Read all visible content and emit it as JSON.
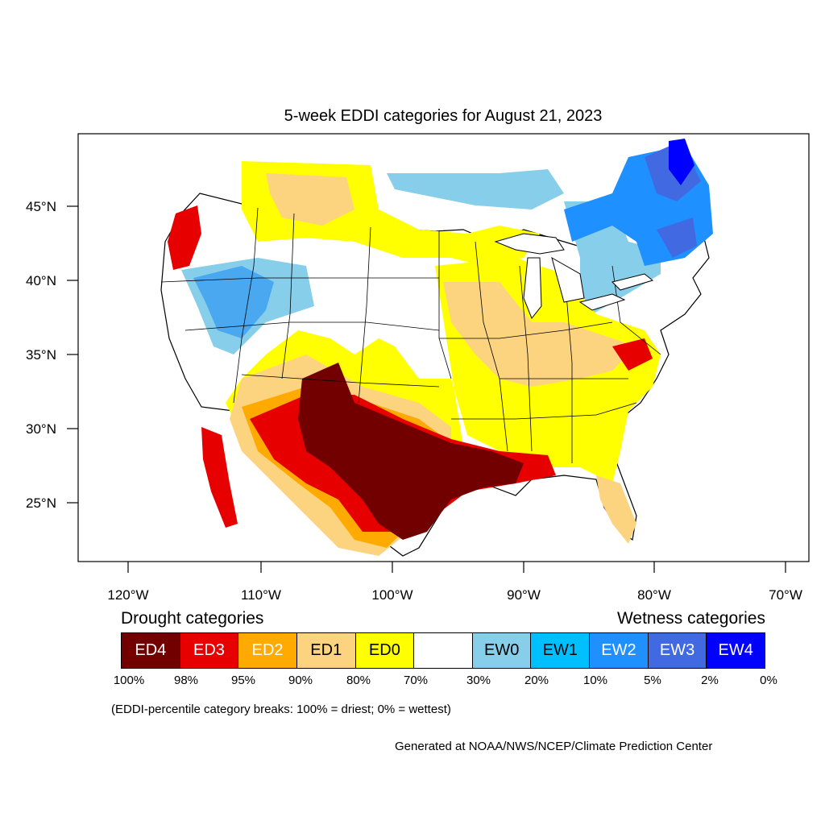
{
  "title": "5-week EDDI categories for August 21, 2023",
  "axes": {
    "lon_labels": [
      "120°W",
      "110°W",
      "100°W",
      "90°W",
      "80°W",
      "70°W"
    ],
    "lat_labels": [
      "45°N",
      "40°N",
      "35°N",
      "30°N",
      "25°N"
    ]
  },
  "legend": {
    "drought_heading": "Drought categories",
    "wetness_heading": "Wetness categories",
    "categories": [
      {
        "label": "ED4",
        "color": "#730000",
        "text_color": "#ffffff"
      },
      {
        "label": "ED3",
        "color": "#e60000",
        "text_color": "#ffffff"
      },
      {
        "label": "ED2",
        "color": "#ffaa00",
        "text_color": "#ffffff"
      },
      {
        "label": "ED1",
        "color": "#fcd37f",
        "text_color": "#000000"
      },
      {
        "label": "ED0",
        "color": "#ffff00",
        "text_color": "#000000"
      },
      {
        "label": "",
        "color": "#ffffff",
        "text_color": "#000000"
      },
      {
        "label": "EW0",
        "color": "#87ceeb",
        "text_color": "#000000"
      },
      {
        "label": "EW1",
        "color": "#00bfff",
        "text_color": "#000000"
      },
      {
        "label": "EW2",
        "color": "#1e90ff",
        "text_color": "#ffffff"
      },
      {
        "label": "EW3",
        "color": "#4169e1",
        "text_color": "#ffffff"
      },
      {
        "label": "EW4",
        "color": "#0000ff",
        "text_color": "#ffffff"
      }
    ],
    "breaks": [
      "100%",
      "98%",
      "95%",
      "90%",
      "80%",
      "70%",
      "30%",
      "20%",
      "10%",
      "5%",
      "2%",
      "0%"
    ]
  },
  "note": "(EDDI-percentile category breaks: 100% = driest; 0% = wettest)",
  "credit": "Generated at NOAA/NWS/NCEP/Climate Prediction Center"
}
